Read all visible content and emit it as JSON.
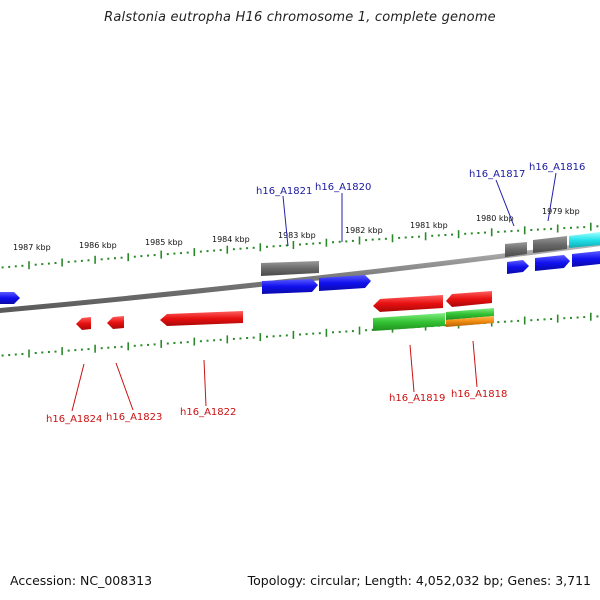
{
  "title": "Ralstonia eutropha H16 chromosome 1, complete genome",
  "footer": {
    "accession": "Accession: NC_008313",
    "stats": "Topology: circular; Length: 4,052,032 bp; Genes: 3,711"
  },
  "colors": {
    "forward_gene": "#1a1aee",
    "reverse_gene": "#e01010",
    "rna_gene": "#6e6e6e",
    "cds_green": "#3cc43c",
    "cds_orange": "#f08c10",
    "misc_cyan": "#20e0e8",
    "tick": "#2a8a2a",
    "backbone": "#808080",
    "forward_label": "#1a1aa0",
    "reverse_label": "#cc1010"
  },
  "scale_labels": [
    "1987 kbp",
    "1986 kbp",
    "1985 kbp",
    "1984 kbp",
    "1983 kbp",
    "1982 kbp",
    "1981 kbp",
    "1980 kbp",
    "1979 kbp"
  ],
  "genes_forward": [
    "h16_A1821",
    "h16_A1820",
    "h16_A1817",
    "h16_A1816"
  ],
  "genes_reverse": [
    "h16_A1824",
    "h16_A1823",
    "h16_A1822",
    "h16_A1819",
    "h16_A1818"
  ]
}
